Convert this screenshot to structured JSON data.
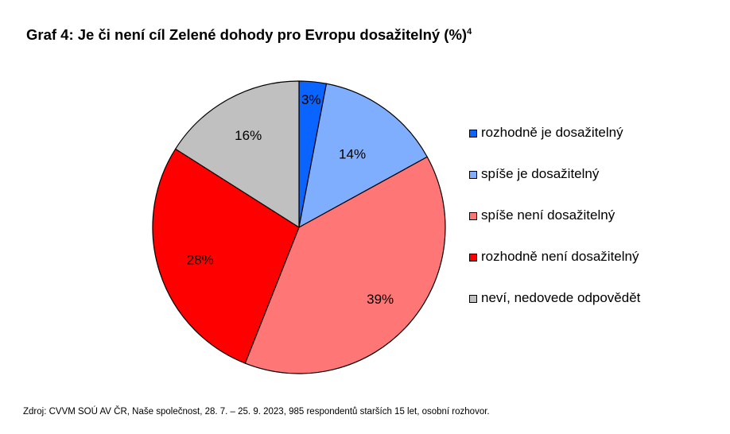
{
  "chart_data": {
    "type": "pie",
    "title": "Graf 4: Je či není cíl Zelené dohody pro Evropu dosažitelný (%)",
    "title_superscript": "4",
    "slices": [
      {
        "label": "rozhodně je dosažitelný",
        "value": 3,
        "value_label": "3%",
        "color": "#0A64FF"
      },
      {
        "label": "spíše je dosažitelný",
        "value": 14,
        "value_label": "14%",
        "color": "#80AEFF"
      },
      {
        "label": "spíše není dosažitelný",
        "value": 39,
        "value_label": "39%",
        "color": "#FF7676"
      },
      {
        "label": "rozhodně není dosažitelný",
        "value": 28,
        "value_label": "28%",
        "color": "#FF0000"
      },
      {
        "label": "neví, nedovede odpovědět",
        "value": 16,
        "value_label": "16%",
        "color": "#C0C0C0"
      }
    ],
    "legend_position": "right",
    "start_angle": "12 o'clock",
    "direction": "clockwise"
  },
  "source": "Zdroj: CVVM SOÚ AV ČR, Naše společnost, 28. 7. – 25. 9. 2023, 985 respondentů starších 15 let, osobní rozhovor."
}
